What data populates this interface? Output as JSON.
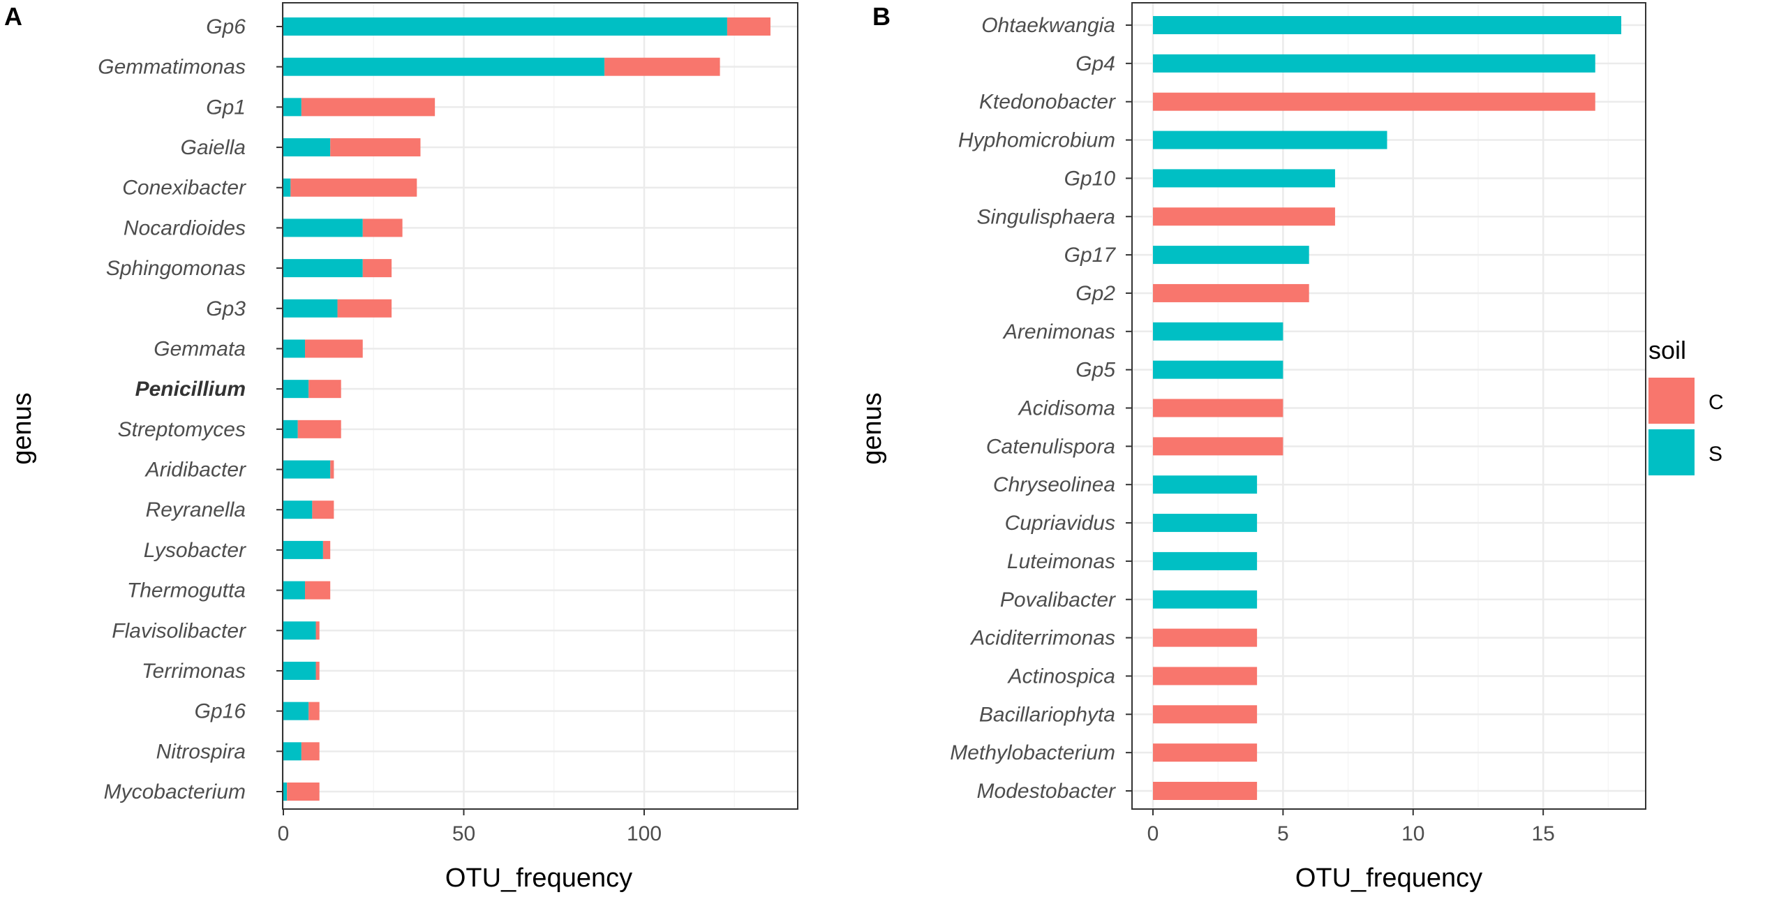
{
  "colors": {
    "C": "#F8766D",
    "S": "#00BFC4",
    "grid_major": "#EBEBEB",
    "grid_minor": "#F5F5F5",
    "panel_border": "#333333"
  },
  "legend": {
    "title": "soil",
    "items": [
      {
        "key": "C",
        "label": "C"
      },
      {
        "key": "S",
        "label": "S"
      }
    ]
  },
  "chart_data": [
    {
      "panel": "A",
      "type": "bar",
      "stacked": true,
      "orientation": "horizontal",
      "xlabel": "OTU_frequency",
      "ylabel": "genus",
      "xlim": [
        0,
        140
      ],
      "xticks": [
        0,
        50,
        100
      ],
      "bold_categories": [
        "Penicillium"
      ],
      "categories": [
        "Gp6",
        "Gemmatimonas",
        "Gp1",
        "Gaiella",
        "Conexibacter",
        "Nocardioides",
        "Sphingomonas",
        "Gp3",
        "Gemmata",
        "Penicillium",
        "Streptomyces",
        "Aridibacter",
        "Reyranella",
        "Lysobacter",
        "Thermogutta",
        "Flavisolibacter",
        "Terrimonas",
        "Gp16",
        "Nitrospira",
        "Mycobacterium"
      ],
      "series": [
        {
          "name": "S",
          "values": [
            123,
            89,
            5,
            13,
            2,
            22,
            22,
            15,
            6,
            7,
            4,
            13,
            8,
            11,
            6,
            9,
            9,
            7,
            5,
            1
          ]
        },
        {
          "name": "C",
          "values": [
            12,
            32,
            37,
            25,
            35,
            11,
            8,
            15,
            16,
            9,
            12,
            1,
            6,
            2,
            7,
            1,
            1,
            3,
            5,
            9
          ]
        }
      ]
    },
    {
      "panel": "B",
      "type": "bar",
      "stacked": true,
      "orientation": "horizontal",
      "xlabel": "OTU_frequency",
      "ylabel": "genus",
      "xlim": [
        0,
        19
      ],
      "xticks": [
        0,
        5,
        10,
        15
      ],
      "bold_categories": [],
      "categories": [
        "Ohtaekwangia",
        "Gp4",
        "Ktedonobacter",
        "Hyphomicrobium",
        "Gp10",
        "Singulisphaera",
        "Gp17",
        "Gp2",
        "Arenimonas",
        "Gp5",
        "Acidisoma",
        "Catenulispora",
        "Chryseolinea",
        "Cupriavidus",
        "Luteimonas",
        "Povalibacter",
        "Aciditerrimonas",
        "Actinospica",
        "Bacillariophyta",
        "Methylobacterium",
        "Modestobacter"
      ],
      "series": [
        {
          "name": "S",
          "values": [
            18,
            17,
            0,
            9,
            7,
            0,
            6,
            0,
            5,
            5,
            0,
            0,
            4,
            4,
            4,
            4,
            0,
            0,
            0,
            0,
            0
          ]
        },
        {
          "name": "C",
          "values": [
            0,
            0,
            17,
            0,
            0,
            7,
            0,
            6,
            0,
            0,
            5,
            5,
            0,
            0,
            0,
            0,
            4,
            4,
            4,
            4,
            4
          ]
        }
      ]
    }
  ]
}
